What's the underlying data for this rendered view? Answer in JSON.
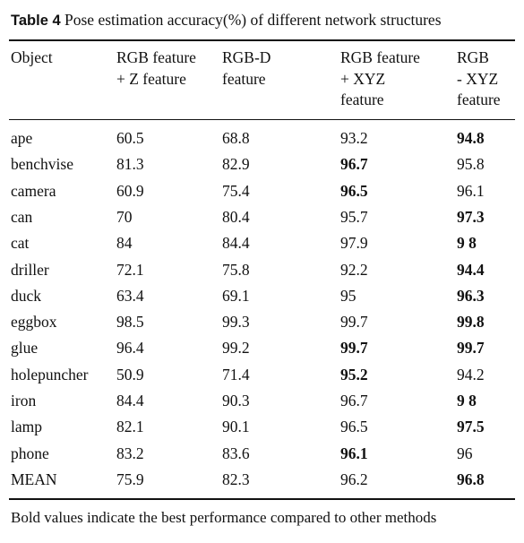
{
  "caption": {
    "label": "Table 4",
    "text": "Pose estimation accuracy(%) of different network structures"
  },
  "columns": [
    "Object",
    "RGB feature\n+ Z feature",
    "RGB-D\nfeature",
    "RGB feature\n+ XYZ\nfeature",
    "RGB\n- XYZ\nfeature"
  ],
  "rows": [
    {
      "object": "ape",
      "values": [
        "60.5",
        "68.8",
        "93.2",
        "94.8"
      ],
      "bold": [
        false,
        false,
        false,
        true
      ]
    },
    {
      "object": "benchvise",
      "values": [
        "81.3",
        "82.9",
        "96.7",
        "95.8"
      ],
      "bold": [
        false,
        false,
        true,
        false
      ]
    },
    {
      "object": "camera",
      "values": [
        "60.9",
        "75.4",
        "96.5",
        "96.1"
      ],
      "bold": [
        false,
        false,
        true,
        false
      ]
    },
    {
      "object": "can",
      "values": [
        "70",
        "80.4",
        "95.7",
        "97.3"
      ],
      "bold": [
        false,
        false,
        false,
        true
      ]
    },
    {
      "object": "cat",
      "values": [
        "84",
        "84.4",
        "97.9",
        "9 8"
      ],
      "bold": [
        false,
        false,
        false,
        true
      ]
    },
    {
      "object": "driller",
      "values": [
        "72.1",
        "75.8",
        "92.2",
        "94.4"
      ],
      "bold": [
        false,
        false,
        false,
        true
      ]
    },
    {
      "object": "duck",
      "values": [
        "63.4",
        "69.1",
        "95",
        "96.3"
      ],
      "bold": [
        false,
        false,
        false,
        true
      ]
    },
    {
      "object": "eggbox",
      "values": [
        "98.5",
        "99.3",
        "99.7",
        "99.8"
      ],
      "bold": [
        false,
        false,
        false,
        true
      ]
    },
    {
      "object": "glue",
      "values": [
        "96.4",
        "99.2",
        "99.7",
        "99.7"
      ],
      "bold": [
        false,
        false,
        true,
        true
      ]
    },
    {
      "object": "holepuncher",
      "values": [
        "50.9",
        "71.4",
        "95.2",
        "94.2"
      ],
      "bold": [
        false,
        false,
        true,
        false
      ]
    },
    {
      "object": "iron",
      "values": [
        "84.4",
        "90.3",
        "96.7",
        "9 8"
      ],
      "bold": [
        false,
        false,
        false,
        true
      ]
    },
    {
      "object": "lamp",
      "values": [
        "82.1",
        "90.1",
        "96.5",
        "97.5"
      ],
      "bold": [
        false,
        false,
        false,
        true
      ]
    },
    {
      "object": "phone",
      "values": [
        "83.2",
        "83.6",
        "96.1",
        "96"
      ],
      "bold": [
        false,
        false,
        true,
        false
      ]
    },
    {
      "object": "MEAN",
      "values": [
        "75.9",
        "82.3",
        "96.2",
        "96.8"
      ],
      "bold": [
        false,
        false,
        false,
        true
      ]
    }
  ],
  "footnote": "Bold values indicate the best performance compared to other methods"
}
